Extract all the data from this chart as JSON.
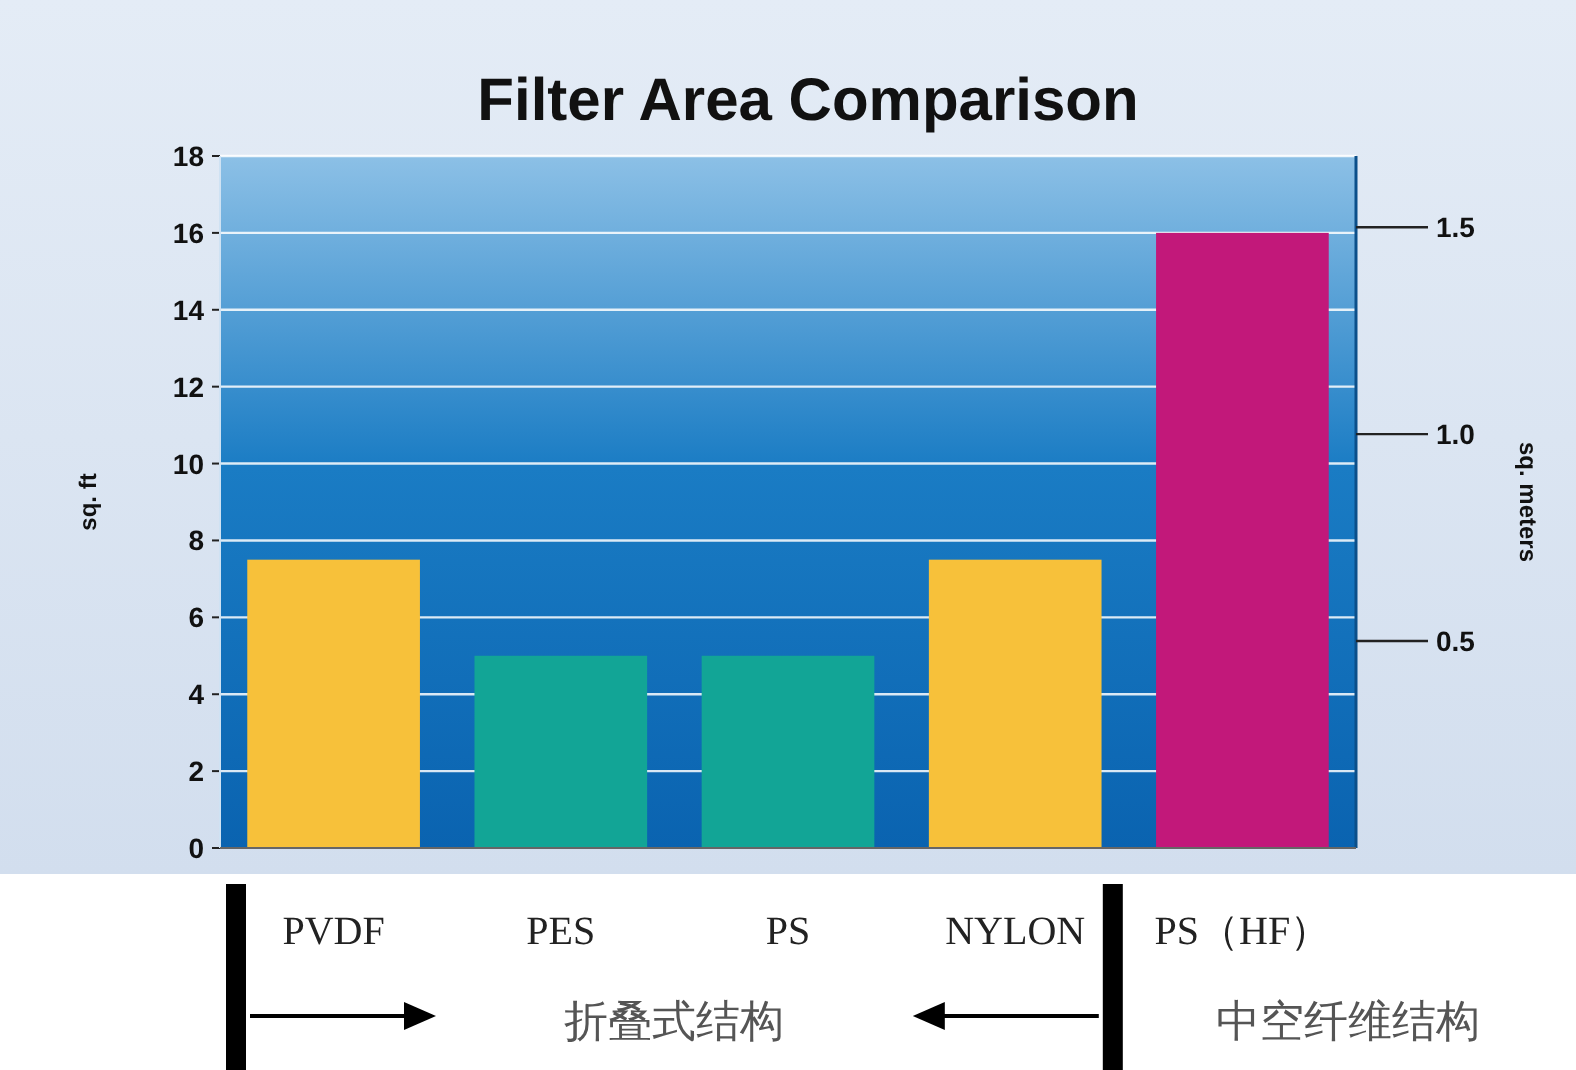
{
  "chart_data": {
    "type": "bar",
    "title": "Filter Area Comparison",
    "ylabel": "sq. ft",
    "y2label": "sq. meters",
    "categories": [
      "PVDF",
      "PES",
      "PS",
      "NYLON",
      "PS（HF）"
    ],
    "values": [
      7.5,
      5,
      5,
      7.5,
      16
    ],
    "colors": [
      "#f7c13a",
      "#12a596",
      "#12a596",
      "#f7c13a",
      "#c2187a"
    ],
    "ylim": [
      0,
      18
    ],
    "yticks": [
      0,
      2,
      4,
      6,
      8,
      10,
      12,
      14,
      16,
      18
    ],
    "y2lim": [
      0,
      1.672
    ],
    "y2ticks": [
      0.5,
      {
        "value": 1,
        "label": "1.0"
      },
      1.5
    ],
    "grid": "y",
    "annotations": [
      "折叠式结构",
      "中空纤维结构"
    ]
  }
}
